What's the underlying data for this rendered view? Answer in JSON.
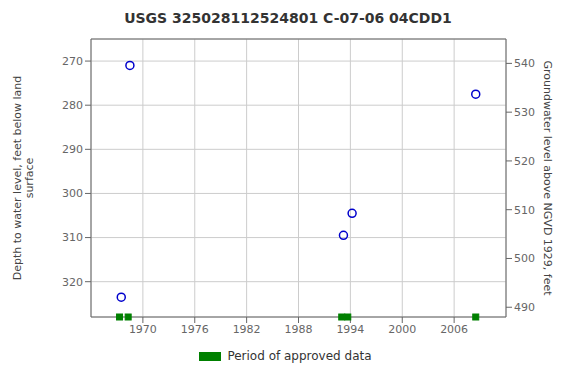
{
  "chart_data": {
    "type": "scatter",
    "title": "USGS 325028112524801 C-07-06 04CDD1",
    "x": [
      1967.5,
      1968.5,
      1993.2,
      1994.2,
      2008.5
    ],
    "series": [
      {
        "color": "#0000cc",
        "marker": "circle",
        "values": [
          323.5,
          271.0,
          309.5,
          304.5,
          277.5
        ]
      },
      {
        "name": "Period of approved data",
        "color": "#008000",
        "marker": "square",
        "x": [
          1967.3,
          1968.3,
          1993.0,
          1993.7,
          2008.5
        ]
      }
    ],
    "xlim": [
      1964,
      2012
    ],
    "xticks": [
      1970,
      1976,
      1982,
      1988,
      1994,
      2000,
      2006
    ],
    "ylim": [
      328,
      265
    ],
    "yticks": [
      270,
      280,
      290,
      300,
      310,
      320
    ],
    "y2lim": [
      488,
      545
    ],
    "y2ticks": [
      490,
      500,
      510,
      520,
      530,
      540
    ],
    "ylabel": "Depth to water level, feet below land\nsurface",
    "y2label": "Groundwater level above NGVD 1929, feet",
    "grid": true,
    "legend": "bottom"
  }
}
